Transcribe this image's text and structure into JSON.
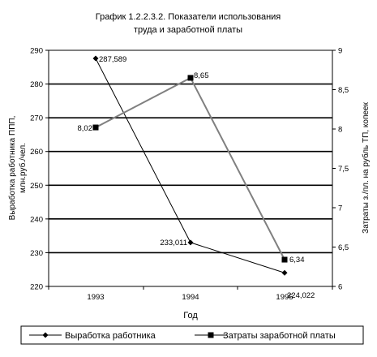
{
  "chart_data": {
    "type": "line",
    "title_lines": [
      "График 1.2.2.3.2.  Показатели использования",
      "труда и заработной платы"
    ],
    "xlabel": "Год",
    "ylabel_left_lines": [
      "Выработка работника ППП,",
      "млн.руб./чел."
    ],
    "ylabel_right": "Затраты з./пл. на рубль ТП, копеек",
    "categories": [
      "1993",
      "1994",
      "1995"
    ],
    "y_left": {
      "min": 220,
      "max": 290,
      "step": 10,
      "ticks": [
        "220",
        "230",
        "240",
        "250",
        "260",
        "270",
        "280",
        "290"
      ]
    },
    "y_right": {
      "min": 6,
      "max": 9,
      "step": 0.5,
      "ticks": [
        "6",
        "6,5",
        "7",
        "7,5",
        "8",
        "8,5",
        "9"
      ]
    },
    "series": [
      {
        "name": "Выработка работника",
        "axis": "left",
        "values": [
          287.589,
          233.011,
          224.022
        ],
        "labels": [
          "287,589",
          "233,011",
          "224,022"
        ],
        "color": "#000000",
        "marker": "diamond"
      },
      {
        "name": "Затраты заработной платы",
        "axis": "right",
        "values": [
          8.02,
          8.65,
          6.34
        ],
        "labels": [
          "8,02",
          "8,65",
          "6,34"
        ],
        "color": "#808080",
        "marker": "square"
      }
    ],
    "grid": "horizontal",
    "legend_position": "bottom"
  }
}
